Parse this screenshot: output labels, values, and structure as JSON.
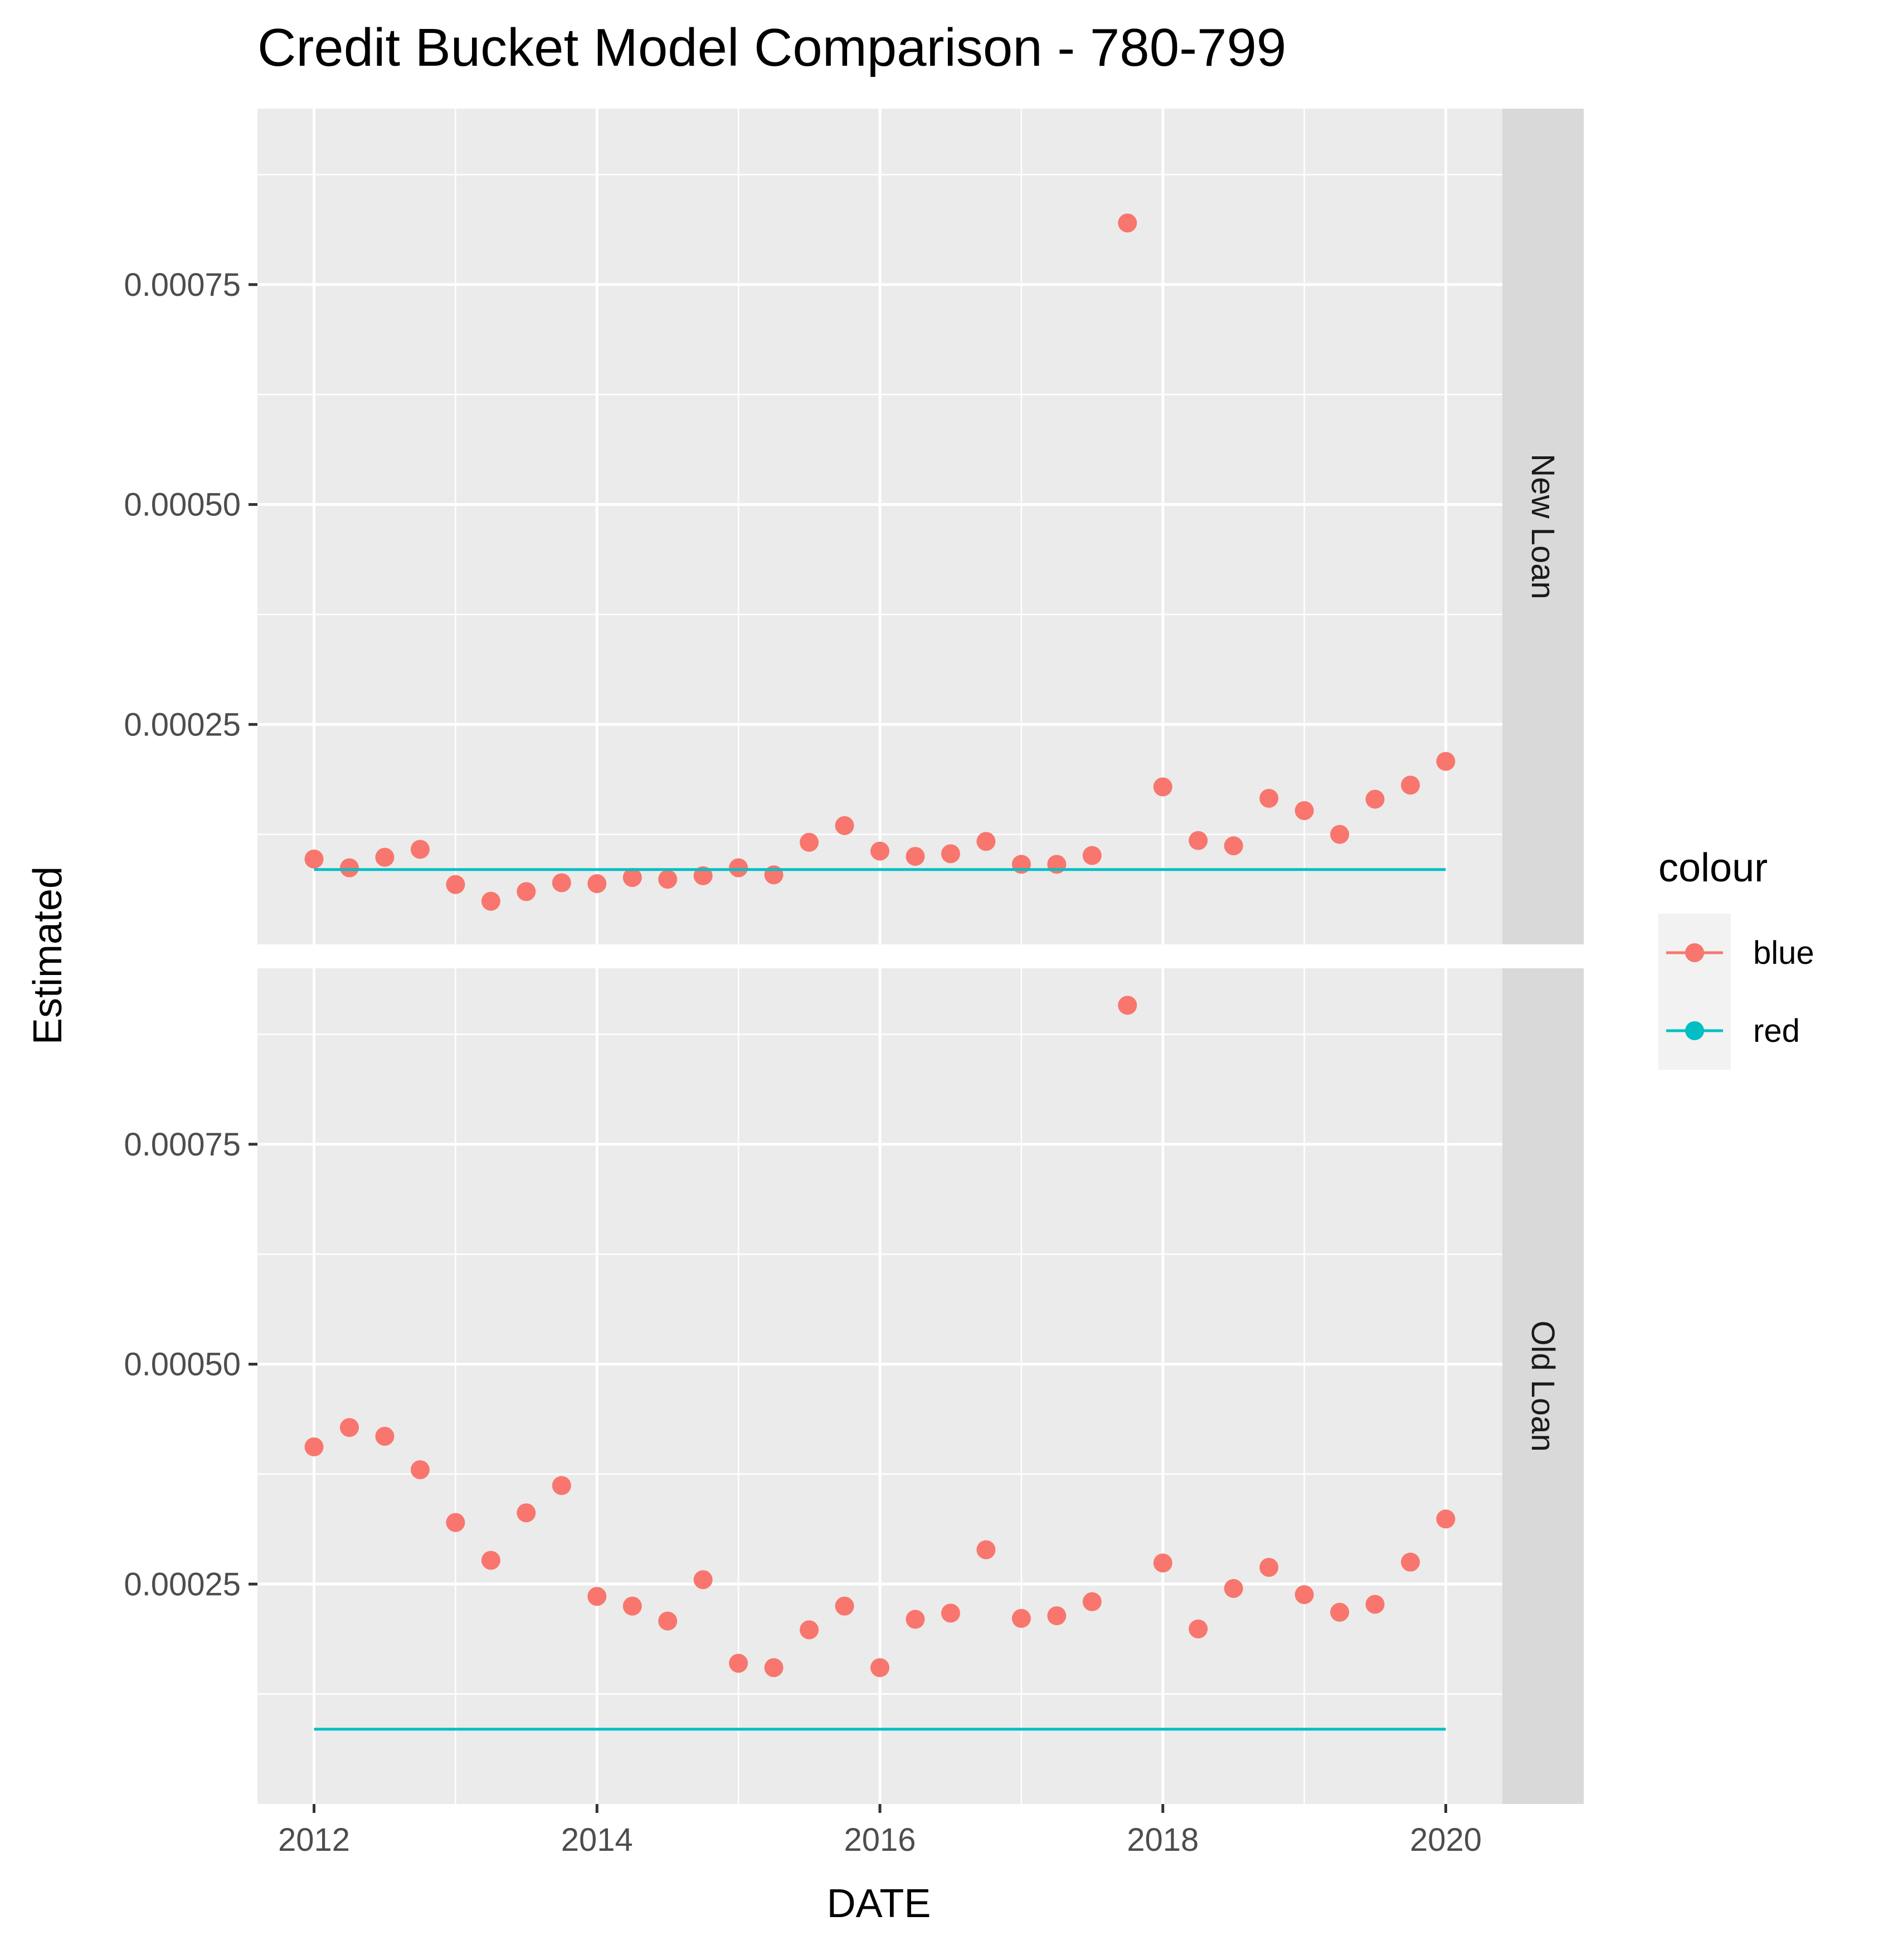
{
  "chart_data": {
    "type": "scatter",
    "title": "Credit Bucket Model Comparison - 780-799",
    "xlabel": "DATE",
    "ylabel": "Estimated",
    "xlim": [
      2011.6,
      2020.4
    ],
    "xticks": [
      2012,
      2014,
      2016,
      2018,
      2020
    ],
    "xtick_labels": [
      "2012",
      "2014",
      "2016",
      "2018",
      "2020"
    ],
    "ylim": [
      0.0,
      0.00095
    ],
    "yticks": [
      0.00025,
      0.0005,
      0.00075
    ],
    "ytick_labels": [
      "0.00025",
      "0.00050",
      "0.00075"
    ],
    "grid": true,
    "legend": {
      "title": "colour",
      "position": "right",
      "entries": [
        {
          "label": "blue",
          "color": "#F8766D"
        },
        {
          "label": "red",
          "color": "#00BFC4"
        }
      ]
    },
    "x": [
      2012.0,
      2012.25,
      2012.5,
      2012.75,
      2013.0,
      2013.25,
      2013.5,
      2013.75,
      2014.0,
      2014.25,
      2014.5,
      2014.75,
      2015.0,
      2015.25,
      2015.5,
      2015.75,
      2016.0,
      2016.25,
      2016.5,
      2016.75,
      2017.0,
      2017.25,
      2017.5,
      2017.75,
      2018.0,
      2018.25,
      2018.5,
      2018.75,
      2019.0,
      2019.25,
      2019.5,
      2019.75,
      2020.0
    ],
    "panels": [
      {
        "facet": "New Loan",
        "series": [
          {
            "name": "blue",
            "color": "#F8766D",
            "kind": "points",
            "values": [
              9.7e-05,
              8.7e-05,
              9.9e-05,
              0.000108,
              6.8e-05,
              4.9e-05,
              6e-05,
              7e-05,
              6.9e-05,
              7.6e-05,
              7.4e-05,
              7.8e-05,
              8.7e-05,
              7.9e-05,
              0.000116,
              0.000135,
              0.000106,
              0.0001,
              0.000103,
              0.000117,
              9.1e-05,
              9.1e-05,
              0.000101,
              0.00082,
              0.000179,
              0.000118,
              0.000112,
              0.000166,
              0.000152,
              0.000125,
              0.000165,
              0.000181,
              0.000208
            ]
          },
          {
            "name": "red",
            "color": "#00BFC4",
            "kind": "line",
            "values": [
              8.5e-05,
              8.5e-05
            ]
          }
        ]
      },
      {
        "facet": "Old Loan",
        "series": [
          {
            "name": "blue",
            "color": "#F8766D",
            "kind": "points",
            "values": [
              0.000406,
              0.000428,
              0.000418,
              0.00038,
              0.00032,
              0.000277,
              0.000331,
              0.000362,
              0.000236,
              0.000225,
              0.000208,
              0.000255,
              0.00016,
              0.000155,
              0.000198,
              0.000225,
              0.000155,
              0.00021,
              0.000217,
              0.000289,
              0.000211,
              0.000214,
              0.00023,
              0.000908,
              0.000274,
              0.000199,
              0.000245,
              0.000269,
              0.000238,
              0.000218,
              0.000227,
              0.000275,
              0.000324
            ]
          },
          {
            "name": "red",
            "color": "#00BFC4",
            "kind": "line",
            "values": [
              8.5e-05,
              8.5e-05
            ]
          }
        ]
      }
    ]
  }
}
